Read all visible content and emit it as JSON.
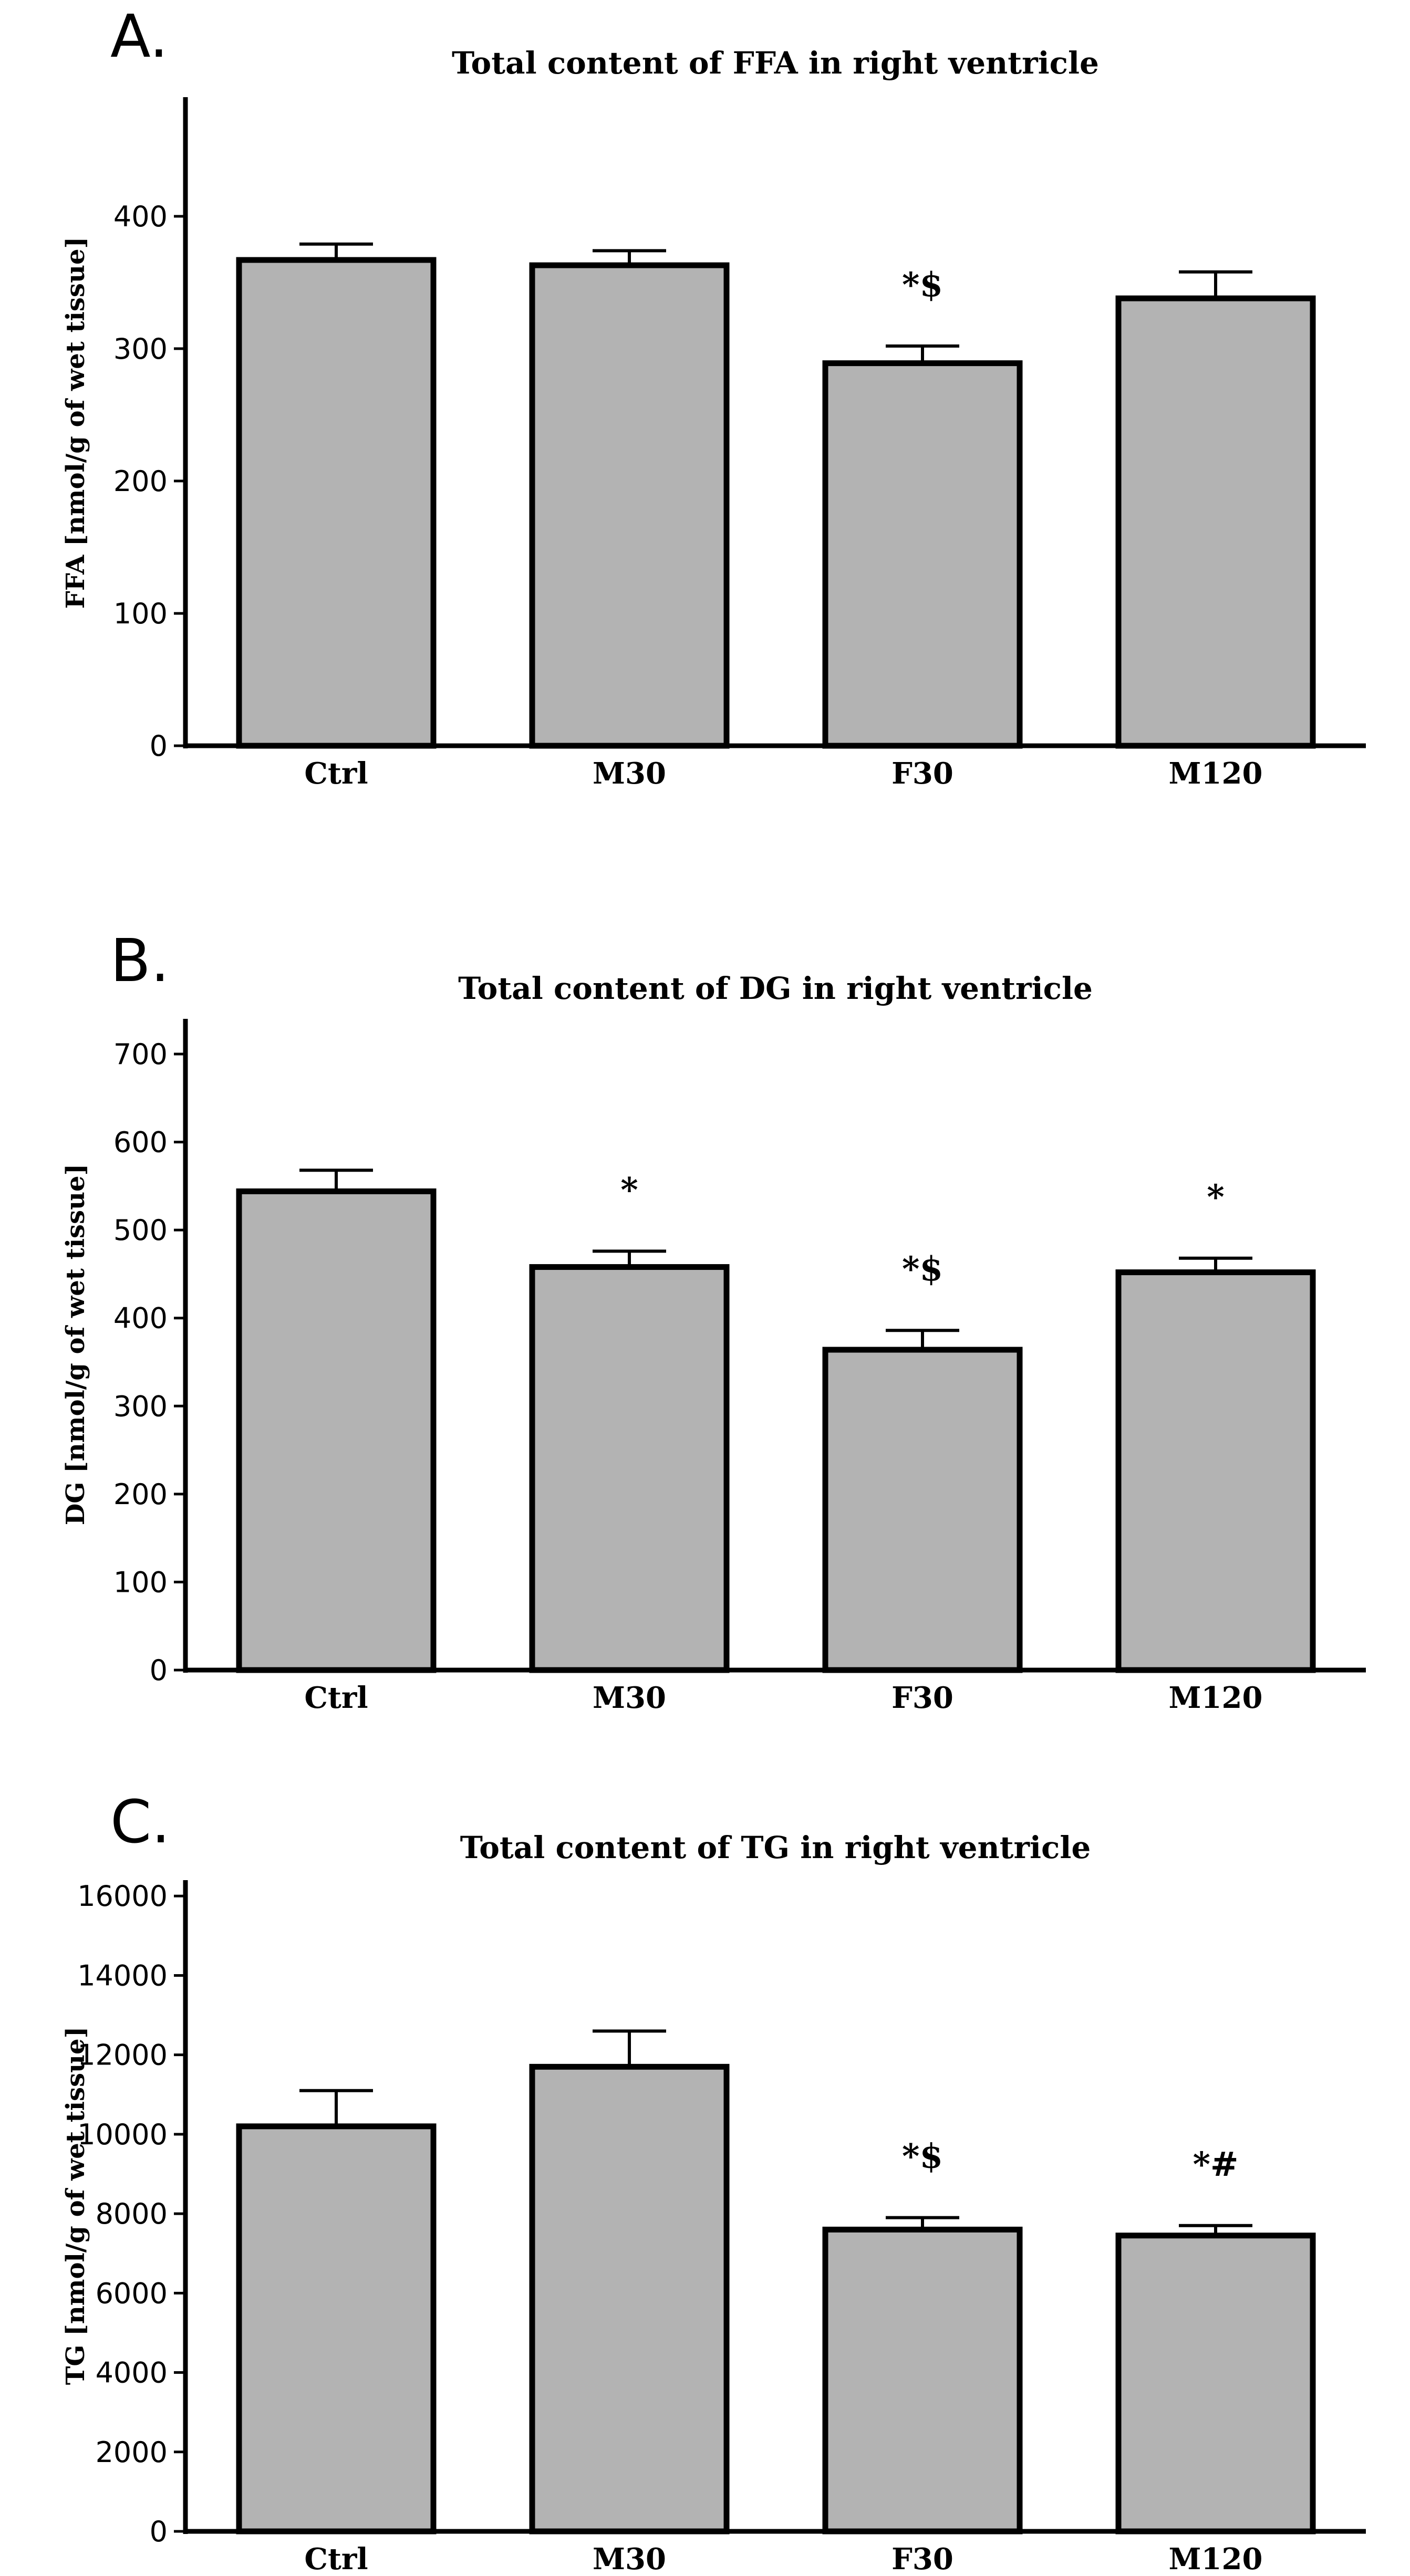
{
  "chart_data": [
    {
      "type": "bar",
      "panel": "A.",
      "title": "Total content of FFA in right ventricle",
      "xlabel": "",
      "ylabel": "FFA [nmol/g of wet tissue]",
      "categories": [
        "Ctrl",
        "M30",
        "F30",
        "M120"
      ],
      "values": [
        367,
        363,
        289,
        338
      ],
      "errors": [
        12,
        11,
        13,
        20
      ],
      "annotations": [
        "",
        "",
        "*$",
        ""
      ],
      "ylim": [
        0,
        490
      ],
      "yticks": [
        0,
        100,
        200,
        300,
        400
      ],
      "ytick_labels": [
        "0",
        "100",
        "200",
        "300",
        "400"
      ]
    },
    {
      "type": "bar",
      "panel": "B.",
      "title": "Total content of DG in right ventricle",
      "xlabel": "",
      "ylabel": "DG [nmol/g of wet tissue]",
      "categories": [
        "Ctrl",
        "M30",
        "F30",
        "M120"
      ],
      "values": [
        544,
        458,
        364,
        452
      ],
      "errors": [
        24,
        18,
        22,
        16
      ],
      "annotations": [
        "",
        "*",
        "*$",
        "*"
      ],
      "ylim": [
        0,
        740
      ],
      "yticks": [
        0,
        100,
        200,
        300,
        400,
        500,
        600,
        700
      ],
      "ytick_labels": [
        "0",
        "100",
        "200",
        "300",
        "400",
        "500",
        "600",
        "700"
      ]
    },
    {
      "type": "bar",
      "panel": "C.",
      "title": "Total content of TG in right ventricle",
      "xlabel": "",
      "ylabel": "TG [nmol/g of wet tissue]",
      "categories": [
        "Ctrl",
        "M30",
        "F30",
        "M120"
      ],
      "values": [
        10200,
        11700,
        7600,
        7450
      ],
      "errors": [
        900,
        900,
        300,
        250
      ],
      "annotations": [
        "",
        "",
        "*$",
        "*#"
      ],
      "ylim": [
        0,
        16400
      ],
      "yticks": [
        0,
        2000,
        4000,
        6000,
        8000,
        10000,
        12000,
        14000,
        16000
      ],
      "ytick_labels": [
        "0",
        "2000",
        "4000",
        "6000",
        "8000",
        "10000",
        "12000",
        "14000",
        "16000"
      ]
    }
  ],
  "colors": {
    "bar_fill": "#b3b3b3",
    "bar_stroke": "#000000",
    "axis": "#000000",
    "background": "#ffffff"
  }
}
